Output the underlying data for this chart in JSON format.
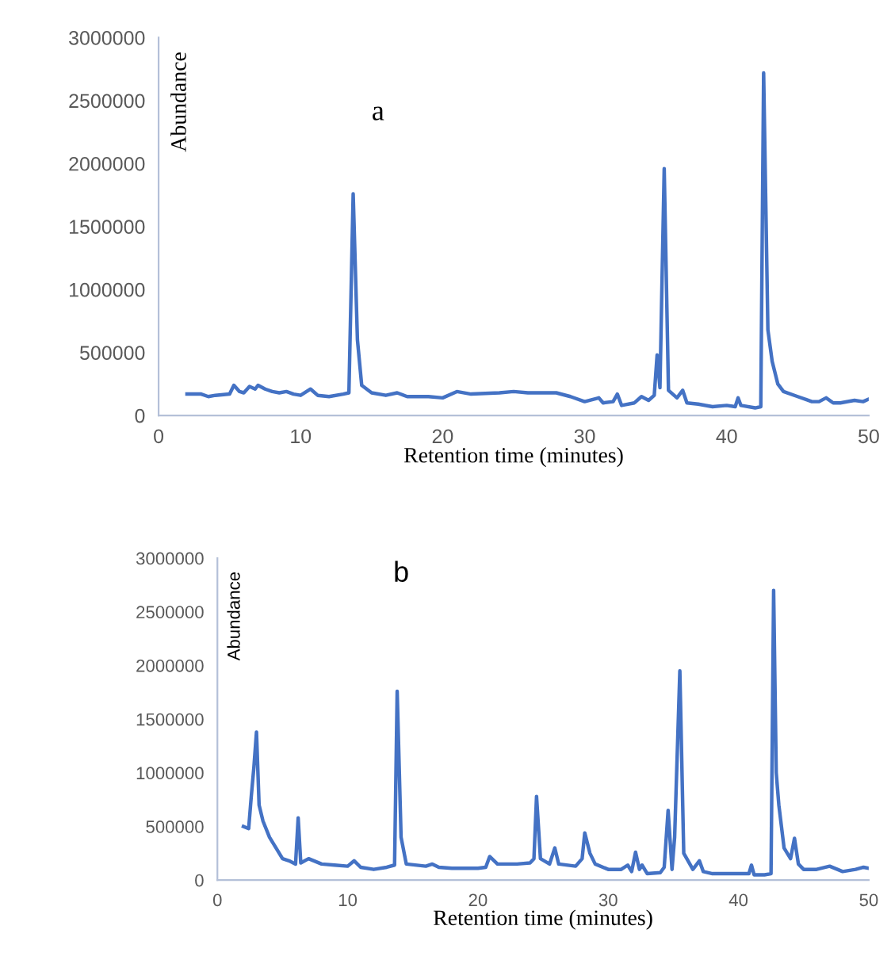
{
  "chart_data": [
    {
      "type": "line",
      "xlabel": "Retention time (minutes)",
      "ylabel": "Abundance",
      "annotations": [
        "a"
      ],
      "xlim": [
        0,
        50
      ],
      "xticks": [
        0,
        10,
        20,
        30,
        40,
        50
      ],
      "ylim": [
        0,
        3000000
      ],
      "yticks": [
        0,
        500000,
        1000000,
        1500000,
        2000000,
        2500000,
        3000000
      ],
      "grid": false,
      "legend": false,
      "marker": "none",
      "line_style": "solid",
      "series": [
        {
          "color": "#4472c4",
          "x": [
            2,
            3,
            3.5,
            4,
            5,
            5.3,
            5.7,
            6,
            6.4,
            6.8,
            7,
            7.5,
            8,
            8.5,
            9,
            9.5,
            10,
            10.7,
            11.2,
            12,
            13,
            13.4,
            13.7,
            14.0,
            14.3,
            15,
            16,
            16.8,
            17.5,
            19,
            20,
            21,
            22,
            24,
            25,
            26,
            28,
            29,
            30,
            31,
            31.3,
            32,
            32.3,
            32.6,
            33.5,
            34,
            34.5,
            34.9,
            35.1,
            35.3,
            35.6,
            35.9,
            36.5,
            36.9,
            37.2,
            38,
            39,
            40,
            40.6,
            40.8,
            41,
            42,
            42.4,
            42.6,
            42.9,
            43.2,
            43.6,
            44,
            45,
            46,
            46.5,
            47,
            47.5,
            48,
            49,
            49.6,
            50
          ],
          "values": [
            170000,
            170000,
            150000,
            160000,
            170000,
            240000,
            190000,
            180000,
            230000,
            210000,
            240000,
            210000,
            190000,
            180000,
            190000,
            170000,
            160000,
            210000,
            160000,
            150000,
            170000,
            180000,
            1760000,
            600000,
            240000,
            180000,
            160000,
            180000,
            150000,
            150000,
            140000,
            190000,
            170000,
            180000,
            190000,
            180000,
            180000,
            150000,
            110000,
            140000,
            100000,
            110000,
            170000,
            80000,
            100000,
            150000,
            120000,
            160000,
            480000,
            220000,
            1960000,
            200000,
            140000,
            200000,
            100000,
            90000,
            70000,
            80000,
            70000,
            140000,
            80000,
            60000,
            70000,
            2720000,
            680000,
            430000,
            250000,
            190000,
            150000,
            110000,
            110000,
            140000,
            100000,
            100000,
            120000,
            110000,
            130000
          ]
        }
      ]
    },
    {
      "type": "line",
      "xlabel": "Retention time (minutes)",
      "ylabel": "Abundance",
      "annotations": [
        "b"
      ],
      "xlim": [
        0,
        50
      ],
      "xticks": [
        0,
        10,
        20,
        30,
        40,
        50
      ],
      "ylim": [
        0,
        3000000
      ],
      "yticks": [
        0,
        500000,
        1000000,
        1500000,
        2000000,
        2500000,
        3000000
      ],
      "grid": false,
      "legend": false,
      "marker": "none",
      "line_style": "solid",
      "series": [
        {
          "color": "#4472c4",
          "x": [
            2,
            2.4,
            2.6,
            2.8,
            3.0,
            3.2,
            3.5,
            4,
            5,
            5.5,
            6,
            6.2,
            6.4,
            7,
            8,
            9,
            10,
            10.5,
            11,
            12,
            13,
            13.6,
            13.8,
            14.1,
            14.5,
            16,
            16.5,
            17,
            18,
            19,
            20,
            20.6,
            20.9,
            21.5,
            23,
            24,
            24.3,
            24.5,
            24.8,
            25.5,
            25.9,
            26.2,
            27.5,
            28,
            28.2,
            28.6,
            29,
            30,
            31,
            31.5,
            31.8,
            32.1,
            32.4,
            32.6,
            33,
            34,
            34.3,
            34.6,
            34.9,
            35.1,
            35.5,
            35.8,
            36.5,
            37,
            37.3,
            38,
            40,
            40.8,
            41,
            41.2,
            42,
            42.5,
            42.7,
            42.9,
            43.1,
            43.5,
            44,
            44.3,
            44.6,
            45,
            46,
            47,
            48,
            49,
            49.6,
            50
          ],
          "values": [
            500000,
            480000,
            780000,
            1050000,
            1380000,
            700000,
            550000,
            400000,
            200000,
            180000,
            150000,
            580000,
            160000,
            200000,
            150000,
            140000,
            130000,
            180000,
            120000,
            100000,
            120000,
            140000,
            1760000,
            400000,
            150000,
            130000,
            150000,
            120000,
            110000,
            110000,
            110000,
            120000,
            220000,
            150000,
            150000,
            160000,
            200000,
            780000,
            200000,
            150000,
            300000,
            150000,
            130000,
            200000,
            440000,
            250000,
            150000,
            100000,
            100000,
            140000,
            80000,
            260000,
            100000,
            140000,
            60000,
            70000,
            120000,
            650000,
            100000,
            400000,
            1950000,
            250000,
            100000,
            180000,
            80000,
            60000,
            60000,
            60000,
            140000,
            50000,
            50000,
            60000,
            2700000,
            1000000,
            700000,
            300000,
            200000,
            390000,
            150000,
            100000,
            100000,
            130000,
            80000,
            100000,
            120000,
            110000
          ]
        }
      ]
    }
  ]
}
